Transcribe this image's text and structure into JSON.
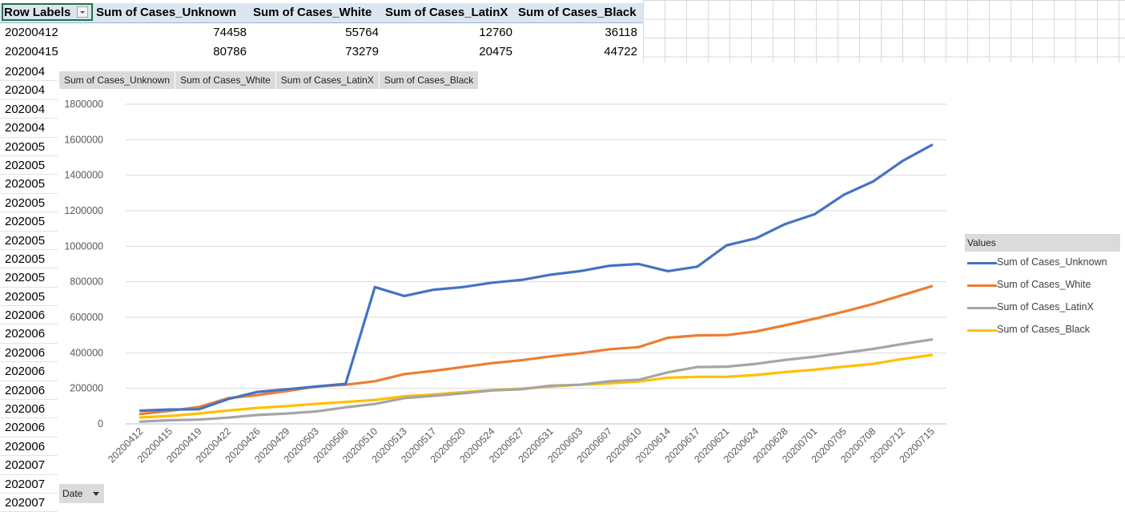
{
  "pivot": {
    "headers": [
      "Row Labels",
      "Sum of Cases_Unknown",
      "Sum of Cases_White",
      "Sum of Cases_LatinX",
      "Sum of Cases_Black"
    ],
    "rows": [
      [
        "20200412",
        "74458",
        "55764",
        "12760",
        "36118"
      ],
      [
        "20200415",
        "80786",
        "73279",
        "20475",
        "44722"
      ]
    ]
  },
  "row_labels_truncated": [
    "202004",
    "202004",
    "202004",
    "202004",
    "202005",
    "202005",
    "202005",
    "202005",
    "202005",
    "202005",
    "202005",
    "202005",
    "202005",
    "202006",
    "202006",
    "202006",
    "202006",
    "202006",
    "202006",
    "202006",
    "202006",
    "202007",
    "202007",
    "202007"
  ],
  "chart": {
    "field_buttons": [
      "Sum of Cases_Unknown",
      "Sum of Cases_White",
      "Sum of Cases_LatinX",
      "Sum of Cases_Black"
    ],
    "legend_title": "Values",
    "axis_field_button": "Date"
  },
  "chart_data": {
    "type": "line",
    "x": [
      "20200412",
      "20200415",
      "20200419",
      "20200422",
      "20200426",
      "20200429",
      "20200503",
      "20200506",
      "20200510",
      "20200513",
      "20200517",
      "20200520",
      "20200524",
      "20200527",
      "20200531",
      "20200603",
      "20200607",
      "20200610",
      "20200614",
      "20200617",
      "20200621",
      "20200624",
      "20200628",
      "20200701",
      "20200705",
      "20200708",
      "20200712",
      "20200715"
    ],
    "ylim": [
      0,
      1800000
    ],
    "yticks": [
      "0",
      "200000",
      "400000",
      "600000",
      "800000",
      "1000000",
      "1200000",
      "1400000",
      "1600000",
      "1800000"
    ],
    "grid": true,
    "legend_position": "right",
    "series": [
      {
        "name": "Sum of Cases_Unknown",
        "color": "#4472c4",
        "values": [
          74458,
          80786,
          82000,
          140000,
          180000,
          195000,
          210000,
          225000,
          770000,
          720000,
          755000,
          770000,
          795000,
          810000,
          840000,
          860000,
          890000,
          900000,
          860000,
          885000,
          1005000,
          1045000,
          1125000,
          1180000,
          1290000,
          1365000,
          1480000,
          1570000
        ]
      },
      {
        "name": "Sum of Cases_White",
        "color": "#ed7d31",
        "values": [
          55764,
          73279,
          95000,
          145000,
          162000,
          185000,
          210000,
          220000,
          240000,
          280000,
          298000,
          320000,
          342000,
          358000,
          380000,
          398000,
          420000,
          432000,
          485000,
          498000,
          500000,
          520000,
          555000,
          592000,
          632000,
          675000,
          725000,
          775000
        ]
      },
      {
        "name": "Sum of Cases_LatinX",
        "color": "#a5a5a5",
        "values": [
          12760,
          20475,
          24000,
          35000,
          50000,
          58000,
          70000,
          93000,
          112000,
          145000,
          158000,
          172000,
          188000,
          195000,
          215000,
          220000,
          240000,
          248000,
          290000,
          320000,
          322000,
          338000,
          360000,
          378000,
          400000,
          422000,
          450000,
          475000
        ]
      },
      {
        "name": "Sum of Cases_Black",
        "color": "#ffc000",
        "values": [
          36118,
          44722,
          58000,
          75000,
          90000,
          100000,
          113000,
          123000,
          135000,
          155000,
          165000,
          178000,
          190000,
          198000,
          210000,
          220000,
          228000,
          238000,
          260000,
          265000,
          265000,
          275000,
          292000,
          305000,
          322000,
          338000,
          365000,
          388000
        ]
      }
    ]
  }
}
